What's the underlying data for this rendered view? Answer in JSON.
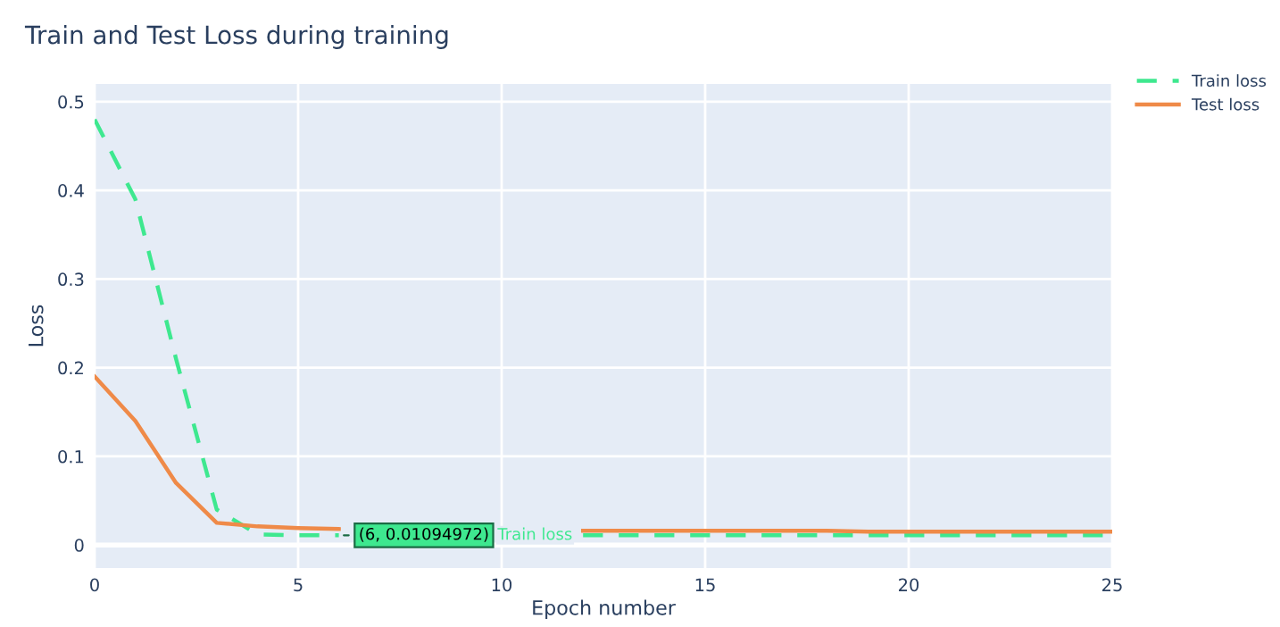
{
  "chart_data": {
    "type": "line",
    "title": "Train and Test Loss during training",
    "xlabel": "Epoch number",
    "ylabel": "Loss",
    "x": [
      0,
      1,
      2,
      3,
      4,
      5,
      6,
      7,
      8,
      9,
      10,
      11,
      12,
      13,
      14,
      15,
      16,
      17,
      18,
      19,
      20,
      21,
      22,
      23,
      24,
      25
    ],
    "series": [
      {
        "name": "Train loss",
        "color": "#3ee88f",
        "line_style": "dashed",
        "values": [
          0.48,
          0.39,
          0.21,
          0.04,
          0.012,
          0.011,
          0.01094972,
          null,
          null,
          null,
          null,
          null,
          0.011,
          0.011,
          0.011,
          0.011,
          0.011,
          0.011,
          0.011,
          0.011,
          0.011,
          0.011,
          0.011,
          0.011,
          0.011,
          0.011
        ]
      },
      {
        "name": "Test loss",
        "color": "#ef8a48",
        "line_style": "solid",
        "values": [
          0.19,
          0.14,
          0.07,
          0.025,
          0.021,
          0.019,
          0.018,
          null,
          null,
          null,
          null,
          null,
          0.016,
          0.016,
          0.016,
          0.016,
          0.016,
          0.016,
          0.016,
          0.015,
          0.015,
          0.015,
          0.015,
          0.015,
          0.015,
          0.015
        ]
      }
    ],
    "xlim": [
      0,
      25
    ],
    "xticks": [
      0,
      5,
      10,
      15,
      20,
      25
    ],
    "ylim": [
      -0.026,
      0.52
    ],
    "yticks": [
      0,
      0.1,
      0.2,
      0.3,
      0.4,
      0.5
    ],
    "grid": true,
    "legend": "top right",
    "marker": "none",
    "annotations": [
      {
        "text": "(6, 0.01094972)",
        "x": 6,
        "y": 0.01094972
      },
      "Train loss"
    ]
  }
}
